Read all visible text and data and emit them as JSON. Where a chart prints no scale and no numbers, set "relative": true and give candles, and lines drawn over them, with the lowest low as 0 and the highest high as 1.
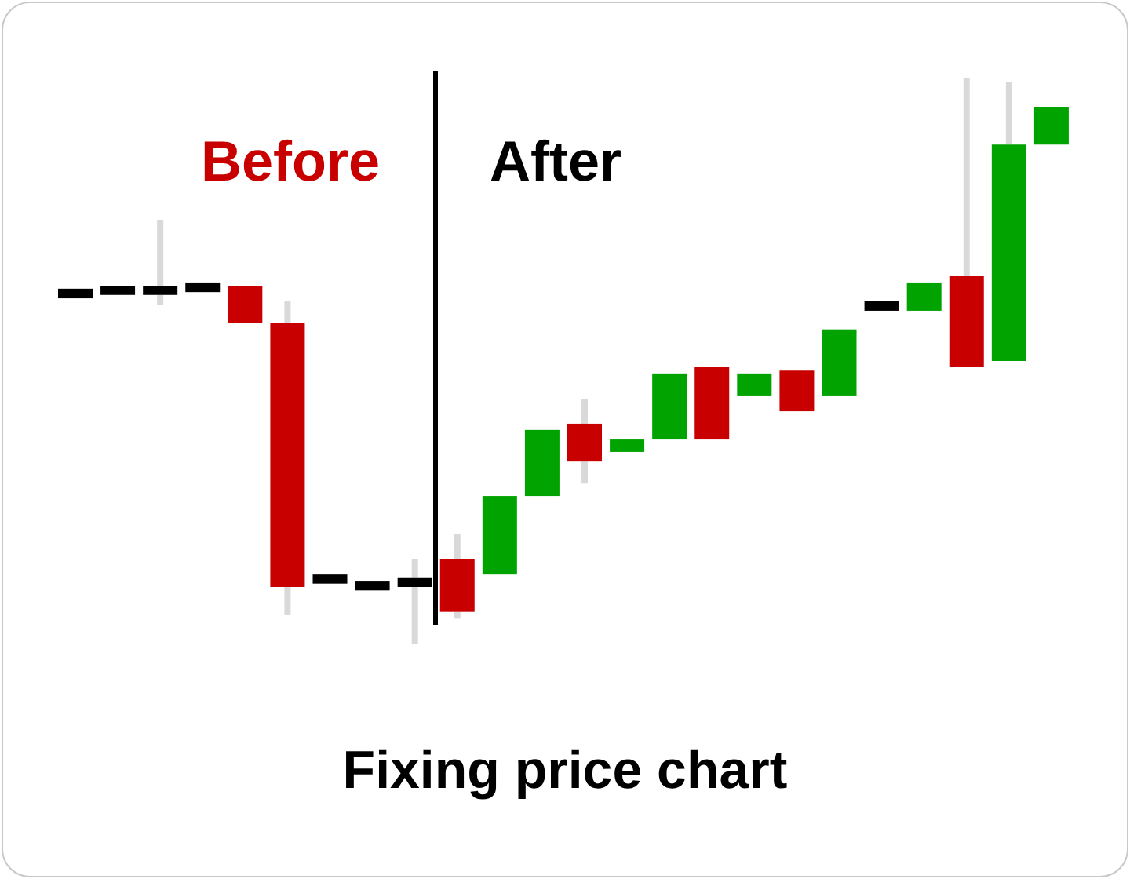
{
  "chart_data": {
    "type": "candlestick",
    "title": "Fixing price chart",
    "annotations": [
      "Before",
      "After"
    ],
    "relative": true,
    "categories": [
      null,
      null,
      null,
      null,
      null,
      null,
      null,
      null,
      null,
      null,
      null,
      null,
      null,
      null,
      null,
      null,
      null,
      null,
      null,
      null,
      null,
      null,
      null,
      null
    ],
    "ohlc": [
      [
        0.628,
        0.628,
        0.611,
        0.611
      ],
      [
        0.633,
        0.633,
        0.617,
        0.617
      ],
      [
        0.633,
        0.75,
        0.6,
        0.617
      ],
      [
        0.639,
        0.639,
        0.622,
        0.622
      ],
      [
        0.633,
        0.633,
        0.567,
        0.567
      ],
      [
        0.567,
        0.606,
        0.05,
        0.1
      ],
      [
        0.122,
        0.122,
        0.106,
        0.106
      ],
      [
        0.111,
        0.111,
        0.094,
        0.094
      ],
      [
        0.117,
        0.15,
        0,
        0.1
      ],
      [
        0.15,
        0.194,
        0.044,
        0.056
      ],
      [
        0.122,
        0.261,
        0.122,
        0.261
      ],
      [
        0.261,
        0.378,
        0.261,
        0.378
      ],
      [
        0.389,
        0.433,
        0.283,
        0.322
      ],
      [
        0.339,
        0.361,
        0.339,
        0.361
      ],
      [
        0.361,
        0.478,
        0.361,
        0.478
      ],
      [
        0.489,
        0.489,
        0.361,
        0.361
      ],
      [
        0.439,
        0.478,
        0.439,
        0.478
      ],
      [
        0.483,
        0.483,
        0.411,
        0.411
      ],
      [
        0.439,
        0.556,
        0.439,
        0.556
      ],
      [
        0.606,
        0.606,
        0.589,
        0.589
      ],
      [
        0.589,
        0.639,
        0.589,
        0.639
      ],
      [
        0.65,
        1,
        0.489,
        0.489
      ],
      [
        0.5,
        0.994,
        0.5,
        0.883
      ],
      [
        0.883,
        0.95,
        0.883,
        0.95
      ]
    ],
    "colors": [
      "#000000",
      "#000000",
      "#000000",
      "#000000",
      "#c80000",
      "#c80000",
      "#000000",
      "#000000",
      "#000000",
      "#c80000",
      "#00a300",
      "#00a300",
      "#c80000",
      "#00a300",
      "#00a300",
      "#c80000",
      "#00a300",
      "#c80000",
      "#00a300",
      "#000000",
      "#00a300",
      "#c80000",
      "#00a300",
      "#00a300"
    ]
  }
}
